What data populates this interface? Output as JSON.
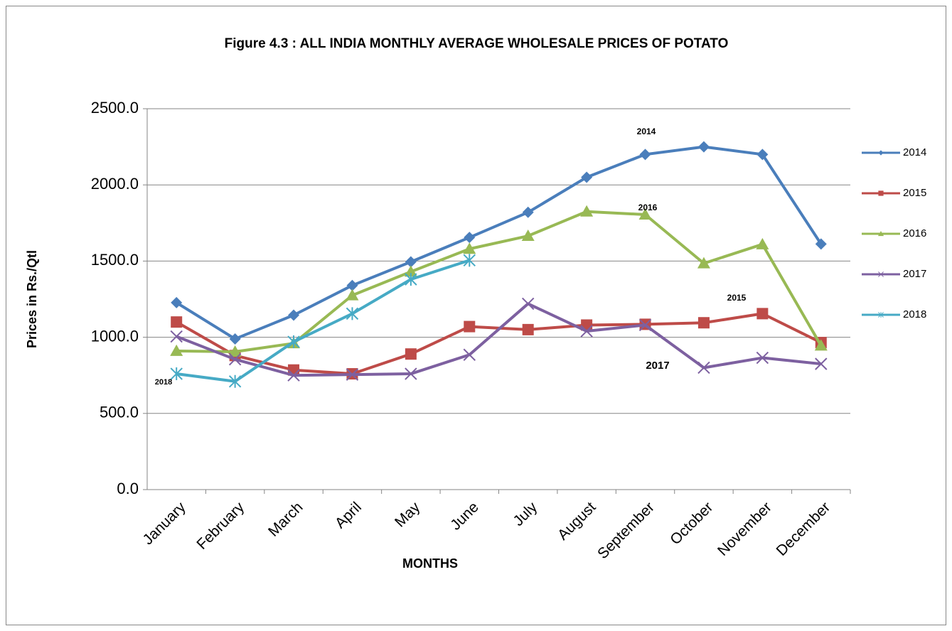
{
  "chart_data": {
    "type": "line",
    "title": "Figure 4.3 : ALL INDIA MONTHLY AVERAGE WHOLESALE PRICES OF POTATO",
    "x_label": "MONTHS",
    "y_label": "Prices in Rs./Qtl",
    "categories": [
      "January",
      "February",
      "March",
      "April",
      "May",
      "June",
      "July",
      "August",
      "September",
      "October",
      "November",
      "December"
    ],
    "series": [
      {
        "name": "2014",
        "color": "#4a7ebb",
        "marker": "diamond",
        "values": [
          1227,
          989,
          1145,
          1340,
          1495,
          1655,
          1820,
          2050,
          2200,
          2250,
          2200,
          1612
        ]
      },
      {
        "name": "2015",
        "color": "#be4b48",
        "marker": "square",
        "values": [
          1100,
          880,
          785,
          760,
          890,
          1070,
          1050,
          1080,
          1085,
          1095,
          1155,
          965
        ]
      },
      {
        "name": "2016",
        "color": "#98b954",
        "marker": "triangle",
        "values": [
          910,
          905,
          960,
          1275,
          1430,
          1580,
          1665,
          1825,
          1805,
          1485,
          1610,
          945
        ]
      },
      {
        "name": "2017",
        "color": "#7d60a0",
        "marker": "x",
        "values": [
          1005,
          855,
          750,
          755,
          760,
          885,
          1220,
          1040,
          1080,
          800,
          865,
          825
        ]
      },
      {
        "name": "2018",
        "color": "#46aac5",
        "marker": "star",
        "values": [
          760,
          710,
          970,
          1155,
          1380,
          1505,
          null,
          null,
          null,
          null,
          null,
          null
        ]
      }
    ],
    "annotations": [
      "2014",
      "2016",
      "2015",
      "2017",
      "2018"
    ],
    "ylim": [
      0,
      2500
    ],
    "yticks": [
      {
        "value": 0,
        "label": "0.0"
      },
      {
        "value": 500,
        "label": "500.0"
      },
      {
        "value": 1000,
        "label": "1000.0"
      },
      {
        "value": 1500,
        "label": "1500.0"
      },
      {
        "value": 2000,
        "label": "2000.0"
      },
      {
        "value": 2500,
        "label": "2500.0"
      }
    ],
    "grid": true,
    "legend": "right"
  }
}
